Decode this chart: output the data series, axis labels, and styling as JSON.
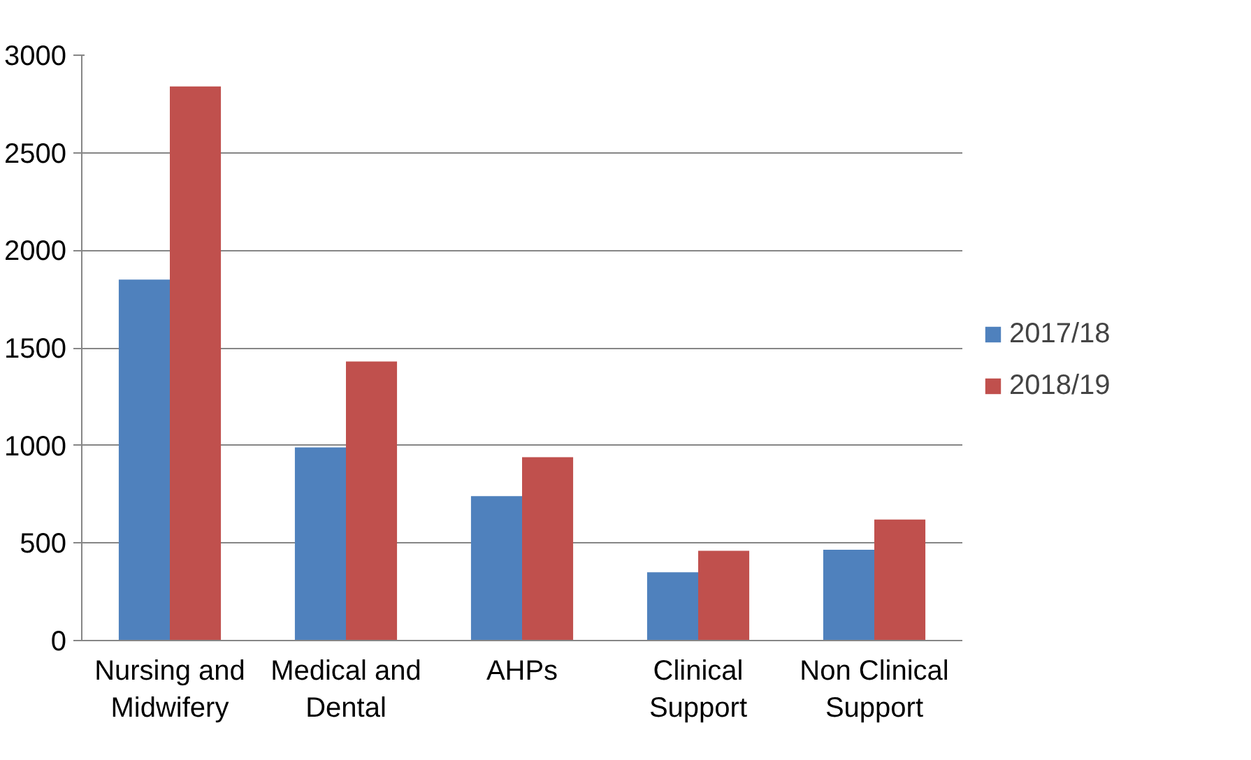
{
  "chart_data": {
    "type": "bar",
    "categories": [
      "Nursing and Midwifery",
      "Medical and Dental",
      "AHPs",
      "Clinical Support",
      "Non Clinical Support"
    ],
    "series": [
      {
        "name": "2017/18",
        "color": "#4f81bd",
        "values": [
          1850,
          990,
          740,
          350,
          465
        ]
      },
      {
        "name": "2018/19",
        "color": "#c0504d",
        "values": [
          2840,
          1430,
          940,
          460,
          620
        ]
      }
    ],
    "ylim": [
      0,
      3000
    ],
    "yticks": [
      0,
      500,
      1000,
      1500,
      2000,
      2500,
      3000
    ],
    "grid": "y",
    "legend": "right"
  }
}
